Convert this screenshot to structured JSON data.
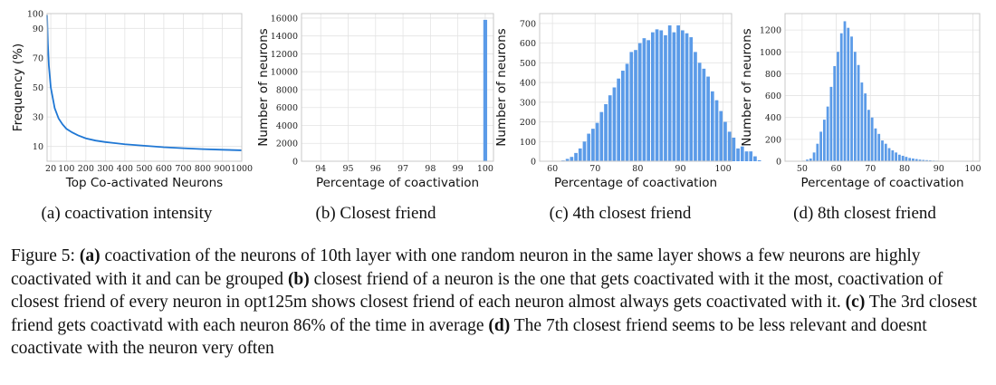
{
  "chart_data": [
    {
      "type": "line",
      "xlabel": "Top Co-activated Neurons",
      "ylabel": "Frequency (%)",
      "xlim": [
        1,
        1000
      ],
      "ylim": [
        0,
        100
      ],
      "grid": true,
      "x_ticks": [
        20,
        100,
        200,
        300,
        400,
        500,
        600,
        700,
        800,
        900,
        1000
      ],
      "y_ticks": [
        10,
        30,
        50,
        70,
        90,
        100
      ],
      "color": "#1f77d4",
      "series": [
        {
          "x": [
            1,
            5,
            10,
            20,
            40,
            60,
            80,
            100,
            130,
            160,
            200,
            250,
            300,
            400,
            500,
            600,
            700,
            800,
            900,
            1000
          ],
          "values": [
            99,
            80,
            65,
            50,
            36,
            29,
            25,
            22,
            19.5,
            17.5,
            15.5,
            14,
            13,
            11.5,
            10.5,
            9.5,
            8.8,
            8.2,
            7.8,
            7.4
          ]
        }
      ]
    },
    {
      "type": "bar",
      "xlabel": "Percentage of coactivation",
      "ylabel": "Number of neurons",
      "xlim": [
        93.3,
        100.3
      ],
      "ylim": [
        0,
        16500
      ],
      "grid": true,
      "x_ticks": [
        94,
        95,
        96,
        97,
        98,
        99,
        100
      ],
      "y_ticks": [
        0,
        2000,
        4000,
        6000,
        8000,
        10000,
        12000,
        14000,
        16000
      ],
      "bar_width": 0.14,
      "color": "#5b9be8",
      "bars": [
        {
          "x": 100,
          "value": 15800
        }
      ]
    },
    {
      "type": "bar",
      "xlabel": "Percentage of coactivation",
      "ylabel": "Number of neurons",
      "xlim": [
        57,
        102
      ],
      "ylim": [
        0,
        750
      ],
      "grid": true,
      "x_ticks": [
        60,
        70,
        80,
        90,
        100
      ],
      "y_ticks": [
        0,
        100,
        200,
        300,
        400,
        500,
        600,
        700
      ],
      "bin_start": 62,
      "bin_width": 1,
      "color": "#5b9be8",
      "values": [
        4,
        12,
        22,
        42,
        65,
        100,
        140,
        165,
        195,
        250,
        290,
        335,
        375,
        420,
        460,
        495,
        555,
        565,
        600,
        625,
        615,
        655,
        670,
        665,
        640,
        690,
        655,
        690,
        665,
        650,
        630,
        555,
        500,
        470,
        430,
        355,
        310,
        255,
        200,
        150,
        120,
        65,
        75,
        50,
        50,
        25,
        5
      ]
    },
    {
      "type": "bar",
      "xlabel": "Percentage of coactivation",
      "ylabel": "Number of neurons",
      "xlim": [
        45,
        102
      ],
      "ylim": [
        0,
        1350
      ],
      "grid": true,
      "x_ticks": [
        50,
        60,
        70,
        80,
        90,
        100
      ],
      "y_ticks": [
        0,
        200,
        400,
        600,
        800,
        1000,
        1200
      ],
      "bin_start": 50,
      "bin_width": 1,
      "color": "#5b9be8",
      "values": [
        5,
        15,
        25,
        80,
        160,
        270,
        380,
        500,
        680,
        870,
        1000,
        1170,
        1280,
        1220,
        1140,
        1000,
        880,
        720,
        620,
        470,
        400,
        300,
        250,
        190,
        160,
        120,
        100,
        80,
        60,
        50,
        40,
        30,
        25,
        20,
        15,
        12,
        10,
        8,
        6,
        5,
        4,
        3,
        2,
        2,
        1,
        1,
        1,
        1
      ]
    }
  ],
  "captions": {
    "a": "(a) coactivation intensity",
    "b": "(b) Closest friend",
    "c": "(c) 4th closest friend",
    "d": "(d) 8th closest friend"
  },
  "figure_caption": {
    "prefix": "Figure 5: ",
    "parts": [
      {
        "label": "(a)",
        "text": " coactivation of the neurons of 10th layer with one random neuron in the same layer shows a few neurons are highly coactivated with it and can be grouped "
      },
      {
        "label": "(b)",
        "text": " closest friend of a neuron is the one that gets coactivated with it the most, coactivation of closest friend of every neuron in opt125m shows closest friend of each neuron almost always gets coactivated with it. "
      },
      {
        "label": "(c)",
        "text": " The 3rd closest friend gets coactivatd with each neuron 86% of the time in average "
      },
      {
        "label": "(d)",
        "text": " The 7th closest friend seems to be less relevant and doesnt coactivate with the neuron very often"
      }
    ]
  }
}
